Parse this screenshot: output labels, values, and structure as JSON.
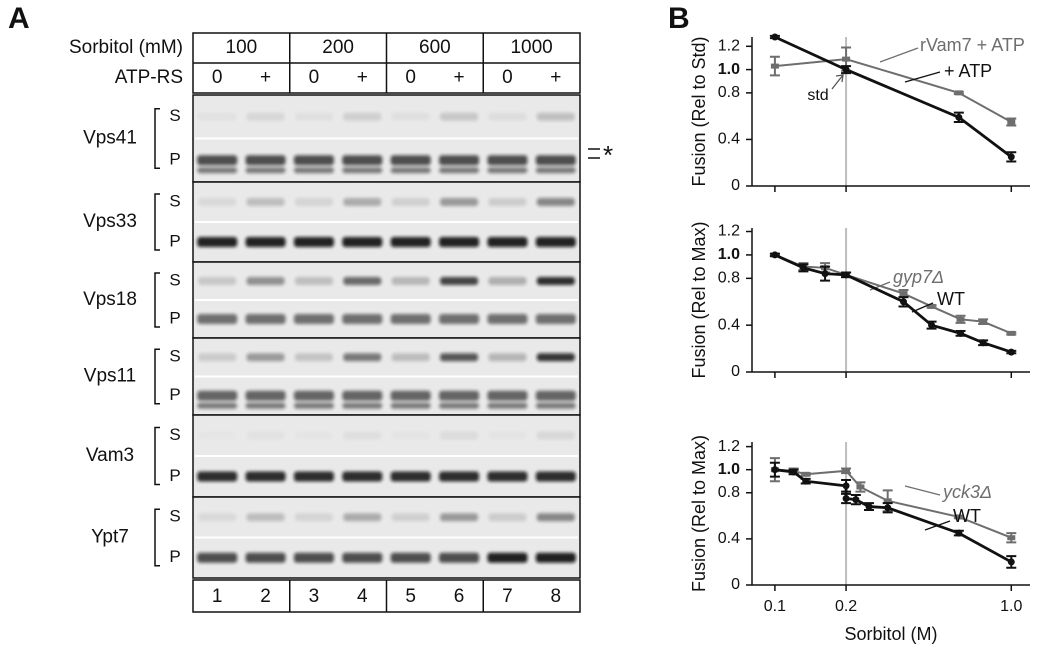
{
  "blot": {
    "panel_label": "A",
    "sorbitol_label": "Sorbitol (mM)",
    "sorbitol": [
      "100",
      "200",
      "600",
      "1000"
    ],
    "atp_label": "ATP-RS",
    "atp": [
      "0",
      "+",
      "0",
      "+",
      "0",
      "+",
      "0",
      "+"
    ],
    "proteins": [
      {
        "name": "Vps41",
        "fractions": [
          "S",
          "P"
        ]
      },
      {
        "name": "Vps33",
        "fractions": [
          "S",
          "P"
        ]
      },
      {
        "name": "Vps18",
        "fractions": [
          "S",
          "P"
        ]
      },
      {
        "name": "Vps11",
        "fractions": [
          "S",
          "P"
        ]
      },
      {
        "name": "Vam3",
        "fractions": [
          "S",
          "P"
        ]
      },
      {
        "name": "Ypt7",
        "fractions": [
          "S",
          "P"
        ]
      }
    ],
    "marker": "*",
    "lanes": [
      "1",
      "2",
      "3",
      "4",
      "5",
      "6",
      "7",
      "8"
    ]
  },
  "chart_data": [
    {
      "type": "line",
      "panel_label": "B",
      "ylabel": "Fusion (Rel to Std)",
      "annotation": "std",
      "xlog": true,
      "xlim": [
        0.08,
        1.2
      ],
      "xticks": [
        0.1,
        0.2,
        1
      ],
      "ylim": [
        0,
        1.28
      ],
      "yticks": [
        0,
        0.4,
        0.8,
        {
          "value": 1,
          "label": "1.0"
        },
        1.2
      ],
      "vline": 0.2,
      "series": [
        {
          "name": "rVam7 + ATP",
          "color": "#6e6e6e",
          "x": [
            0.1,
            0.2,
            0.6,
            1.0
          ],
          "values": [
            1.03,
            1.09,
            0.8,
            0.55
          ],
          "errors": [
            0.08,
            0.1,
            0.01,
            0.03
          ]
        },
        {
          "name": "+ ATP",
          "color": "#111111",
          "x": [
            0.1,
            0.2,
            0.6,
            1.0
          ],
          "values": [
            1.28,
            1.0,
            0.59,
            0.25
          ],
          "errors": [
            0.01,
            0.03,
            0.04,
            0.04
          ]
        }
      ]
    },
    {
      "type": "line",
      "ylabel": "Fusion (Rel to Max)",
      "xlog": true,
      "xlim": [
        0.08,
        1.2
      ],
      "xticks": [
        0.1,
        0.2,
        1
      ],
      "ylim": [
        0,
        1.23
      ],
      "yticks": [
        0,
        0.4,
        0.8,
        {
          "value": 1,
          "label": "1.0"
        },
        1.2
      ],
      "vline": 0.2,
      "series": [
        {
          "name": "gyp7Δ",
          "color": "#6e6e6e",
          "x": [
            0.1,
            0.132,
            0.163,
            0.2,
            0.35,
            0.46,
            0.61,
            0.76,
            1.0
          ],
          "values": [
            1.0,
            0.9,
            0.89,
            0.83,
            0.67,
            0.56,
            0.45,
            0.43,
            0.33
          ],
          "errors": [
            0.01,
            0.03,
            0.04,
            0.02,
            0.03,
            0.01,
            0.03,
            0.02,
            0.01
          ]
        },
        {
          "name": "WT",
          "color": "#111111",
          "x": [
            0.1,
            0.132,
            0.163,
            0.2,
            0.35,
            0.46,
            0.61,
            0.76,
            1.0
          ],
          "values": [
            1.0,
            0.89,
            0.84,
            0.83,
            0.6,
            0.4,
            0.33,
            0.25,
            0.17
          ],
          "errors": [
            0.01,
            0.03,
            0.06,
            0.02,
            0.04,
            0.03,
            0.02,
            0.02,
            0.01
          ]
        }
      ]
    },
    {
      "type": "line",
      "ylabel": "Fusion (Rel to Max)",
      "xlabel": "Sorbitol (M)",
      "xlog": true,
      "xlim": [
        0.08,
        1.2
      ],
      "xticks": [
        0.1,
        0.2,
        {
          "value": 1,
          "label": "1.0"
        }
      ],
      "ylim": [
        0,
        1.24
      ],
      "yticks": [
        0,
        0.4,
        0.8,
        {
          "value": 1,
          "label": "1.0"
        },
        1.2
      ],
      "vline": 0.2,
      "series": [
        {
          "name": "yck3Δ",
          "color": "#6e6e6e",
          "x": [
            0.1,
            0.12,
            0.135,
            0.2,
            0.23,
            0.3,
            0.6,
            1.0
          ],
          "values": [
            1.0,
            0.99,
            0.96,
            0.99,
            0.85,
            0.73,
            0.59,
            0.41
          ],
          "errors": [
            0.1,
            0.02,
            0.01,
            0.02,
            0.04,
            0.09,
            0.01,
            0.04
          ]
        },
        {
          "name": "WT",
          "color": "#111111",
          "x": [
            0.1,
            0.12,
            0.135,
            0.2,
            0.2,
            0.22,
            0.25,
            0.3,
            0.6,
            1.0
          ],
          "values": [
            1.0,
            0.98,
            0.9,
            0.86,
            0.75,
            0.74,
            0.68,
            0.67,
            0.45,
            0.2
          ],
          "errors": [
            0.06,
            0.02,
            0.02,
            0.05,
            0.04,
            0.04,
            0.03,
            0.04,
            0.02,
            0.05
          ]
        }
      ]
    }
  ]
}
